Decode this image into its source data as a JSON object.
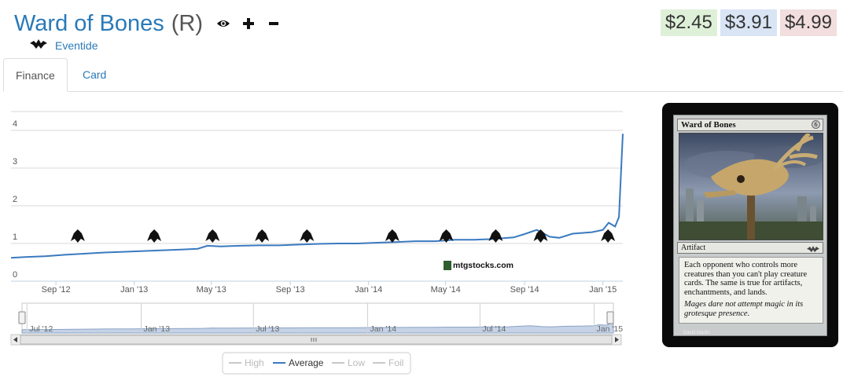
{
  "header": {
    "card_name": "Ward of Bones",
    "rarity": "(R)",
    "icons": [
      "eye-icon",
      "plus-icon",
      "minus-icon"
    ],
    "set_name": "Eventide",
    "set_icon": "eventide-set-icon"
  },
  "prices": {
    "low": "$2.45",
    "average": "$3.91",
    "high": "$4.99",
    "colors": {
      "low": "#dff0d8",
      "average": "#d9e4f5",
      "high": "#f2dede"
    }
  },
  "tabs": [
    {
      "label": "Finance",
      "active": true
    },
    {
      "label": "Card",
      "active": false
    }
  ],
  "watermark": "mtgstocks.com",
  "card": {
    "name": "Ward of Bones",
    "cost": "6",
    "type_line": "Artifact",
    "rules_text": "Each opponent who controls more creatures than you can't play creature cards. The same is true for artifacts, enchantments, and lands.",
    "flavor_text": "Mages dare not attempt magic in its grotesque presence.",
    "artist": "David Martin"
  },
  "chart_data": {
    "type": "line",
    "ylim": [
      0,
      4.5
    ],
    "yticks": [
      "0",
      "1",
      "2",
      "3",
      "4"
    ],
    "x_ticks": [
      "Sep '12",
      "Jan '13",
      "May '13",
      "Sep '13",
      "Jan '14",
      "May '14",
      "Sep '14",
      "Jan '15"
    ],
    "navigator_ticks": [
      "Jul '12",
      "Jan '13",
      "Jul '13",
      "Jan '14",
      "Jul '14",
      "Jan '15"
    ],
    "series": [
      {
        "name": "Average",
        "color": "#3a7ac0",
        "x": [
          "2012-06-23",
          "2012-07-15",
          "2012-08-15",
          "2012-09-15",
          "2012-10-15",
          "2012-11-15",
          "2012-12-15",
          "2013-01-15",
          "2013-02-15",
          "2013-03-15",
          "2013-04-10",
          "2013-04-25",
          "2013-05-15",
          "2013-06-15",
          "2013-07-15",
          "2013-08-15",
          "2013-09-15",
          "2013-10-15",
          "2013-11-15",
          "2013-12-15",
          "2014-01-15",
          "2014-02-15",
          "2014-03-15",
          "2014-04-15",
          "2014-05-15",
          "2014-06-15",
          "2014-07-15",
          "2014-08-15",
          "2014-09-01",
          "2014-09-20",
          "2014-10-10",
          "2014-10-25",
          "2014-11-15",
          "2014-12-15",
          "2015-01-01",
          "2015-01-10",
          "2015-01-20",
          "2015-01-26",
          "2015-02-01"
        ],
        "y": [
          0.62,
          0.64,
          0.66,
          0.7,
          0.73,
          0.76,
          0.78,
          0.8,
          0.82,
          0.84,
          0.86,
          0.94,
          0.92,
          0.94,
          0.95,
          0.95,
          0.97,
          0.99,
          1.0,
          1.0,
          1.02,
          1.04,
          1.06,
          1.06,
          1.1,
          1.1,
          1.12,
          1.16,
          1.25,
          1.36,
          1.18,
          1.15,
          1.26,
          1.3,
          1.36,
          1.55,
          1.45,
          1.7,
          3.91
        ]
      },
      {
        "name": "High",
        "color": "#bbbbbb",
        "x": [],
        "y": []
      },
      {
        "name": "Low",
        "color": "#bbbbbb",
        "x": [],
        "y": []
      },
      {
        "name": "Foil",
        "color": "#bbbbbb",
        "x": [],
        "y": []
      }
    ],
    "set_release_markers": [
      {
        "date": "2012-10-05",
        "icon": "rtr-guild-set-icon"
      },
      {
        "date": "2013-02-01",
        "icon": "gatecrash-set-icon"
      },
      {
        "date": "2013-05-03",
        "icon": "dragons-maze-set-icon"
      },
      {
        "date": "2013-07-19",
        "icon": "m14-set-icon"
      },
      {
        "date": "2013-09-27",
        "icon": "theros-set-icon"
      },
      {
        "date": "2014-02-07",
        "icon": "born-of-the-gods-set-icon"
      },
      {
        "date": "2014-05-02",
        "icon": "journey-into-nyx-set-icon"
      },
      {
        "date": "2014-07-18",
        "icon": "m15-set-icon"
      },
      {
        "date": "2014-09-26",
        "icon": "khans-set-icon"
      },
      {
        "date": "2015-01-09",
        "icon": "eventide-set-icon"
      }
    ],
    "legend": [
      "High",
      "Average",
      "Low",
      "Foil"
    ],
    "legend_active": "Average",
    "legend_placement": "bottom-center",
    "grid": true
  }
}
